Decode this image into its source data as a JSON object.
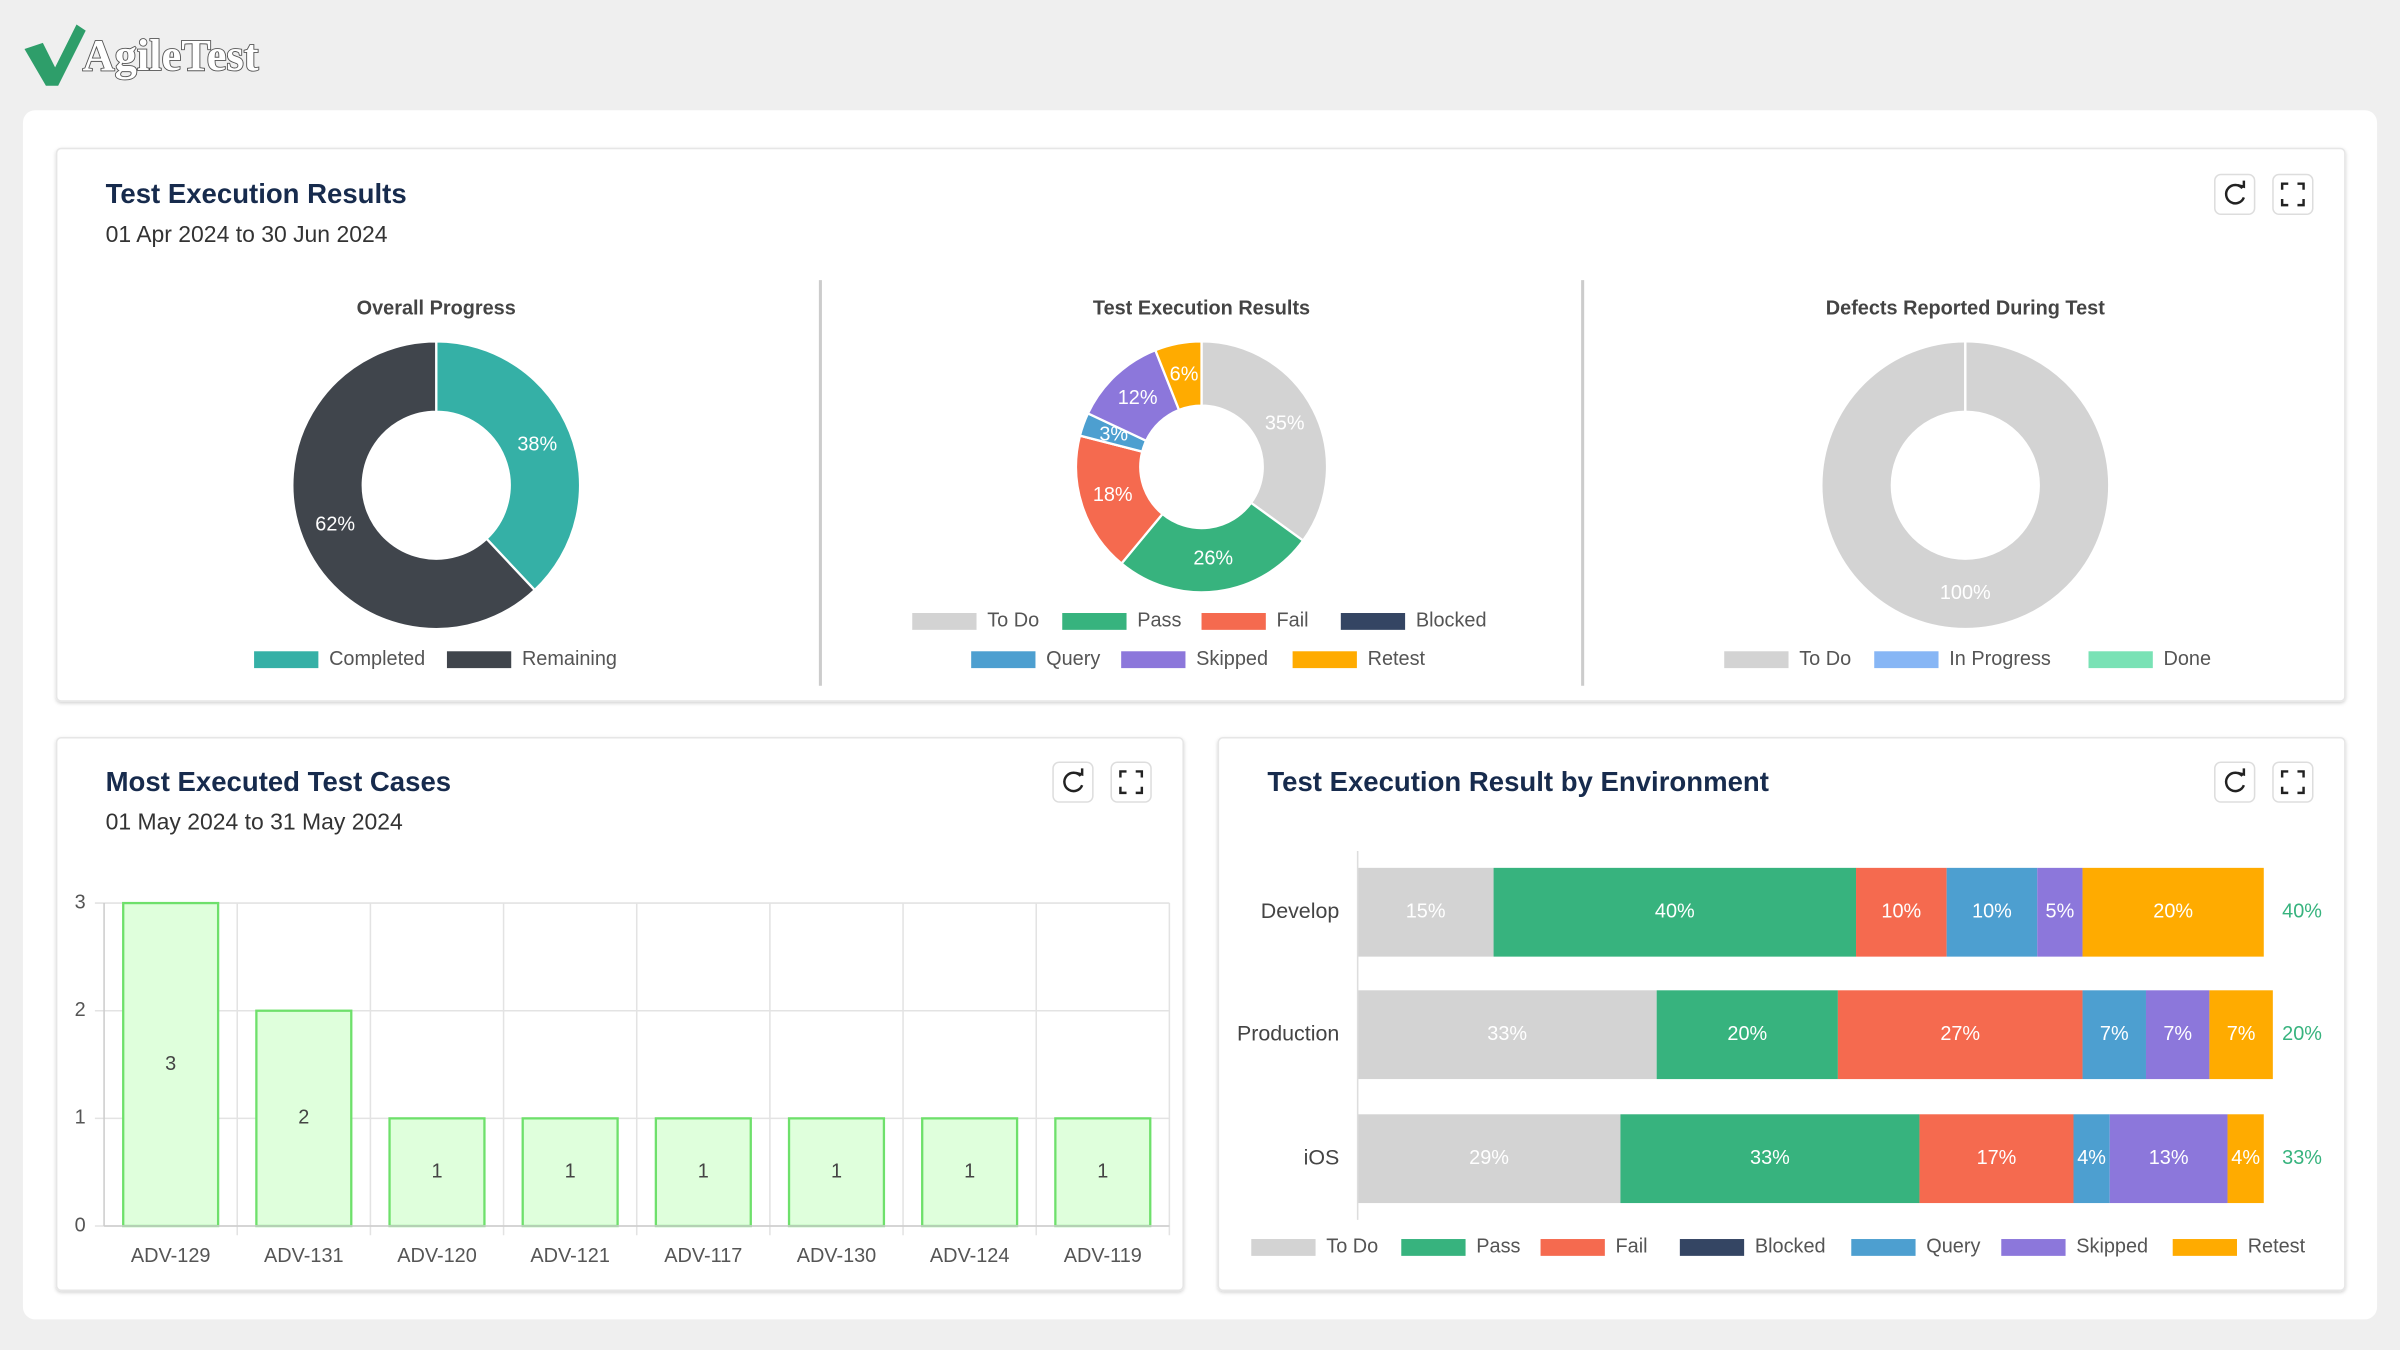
{
  "logo": "AgileTest",
  "panels": [
    {
      "title": "Test Execution Results",
      "subtitle": "01 Apr 2024 to 30 Jun 2024"
    },
    {
      "title": "Most Executed Test Cases",
      "subtitle": "01 May 2024 to 31 May 2024"
    },
    {
      "title": "Test Execution Result by Environment"
    }
  ],
  "chart_data": [
    {
      "type": "donut",
      "title": "Overall Progress",
      "categories": [
        "Completed",
        "Remaining"
      ],
      "values": [
        38,
        62
      ],
      "value_labels": [
        "38%",
        "62%"
      ],
      "colors": [
        "#35b0a6",
        "#40454c"
      ]
    },
    {
      "type": "donut",
      "title": "Test Execution Results",
      "categories": [
        "To Do",
        "Pass",
        "Fail",
        "Blocked",
        "Query",
        "Skipped",
        "Retest"
      ],
      "values": [
        35,
        26,
        18,
        0,
        3,
        12,
        6
      ],
      "value_labels": [
        "35%",
        "26%",
        "18%",
        null,
        "3%",
        "12%",
        "6%"
      ],
      "colors": [
        "#d3d3d3",
        "#37b37e",
        "#f56a4f",
        "#344563",
        "#4d9fd0",
        "#8c77db",
        "#ffab00"
      ]
    },
    {
      "type": "donut",
      "title": "Defects Reported During Test",
      "categories": [
        "To Do",
        "In Progress",
        "Done"
      ],
      "values": [
        100,
        0,
        0
      ],
      "value_labels": [
        "100%",
        null,
        null
      ],
      "colors": [
        "#d3d3d3",
        "#87b6f5",
        "#79e2b5"
      ]
    },
    {
      "type": "bar",
      "categories": [
        "ADV-129",
        "ADV-131",
        "ADV-120",
        "ADV-121",
        "ADV-117",
        "ADV-130",
        "ADV-124",
        "ADV-119"
      ],
      "values": [
        3,
        2,
        1,
        1,
        1,
        1,
        1,
        1
      ],
      "color": "#dfffdc",
      "stroke": "#6ee06b",
      "ylim": [
        0,
        3
      ],
      "yticks": [
        0,
        1,
        2,
        3
      ],
      "grid": true
    },
    {
      "type": "stacked_barh",
      "categories": [
        "Develop",
        "Production",
        "iOS"
      ],
      "xlim": [
        0,
        100
      ],
      "series": [
        {
          "name": "To Do",
          "color": "#d3d3d3",
          "values": [
            15,
            33,
            29
          ],
          "value_labels": [
            "15%",
            "33%",
            "29%"
          ]
        },
        {
          "name": "Pass",
          "color": "#37b37e",
          "values": [
            40,
            20,
            33
          ],
          "value_labels": [
            "40%",
            "20%",
            "33%"
          ]
        },
        {
          "name": "Fail",
          "color": "#f56a4f",
          "values": [
            10,
            27,
            17
          ],
          "value_labels": [
            "10%",
            "27%",
            "17%"
          ]
        },
        {
          "name": "Blocked",
          "color": "#344563",
          "values": [
            0,
            0,
            0
          ],
          "value_labels": [
            null,
            null,
            null
          ]
        },
        {
          "name": "Query",
          "color": "#4d9fd0",
          "values": [
            10,
            7,
            4
          ],
          "value_labels": [
            "10%",
            "7%",
            "4%"
          ]
        },
        {
          "name": "Skipped",
          "color": "#8c77db",
          "values": [
            5,
            7,
            13
          ],
          "value_labels": [
            "5%",
            "7%",
            "13%"
          ]
        },
        {
          "name": "Retest",
          "color": "#ffab00",
          "values": [
            20,
            7,
            4
          ],
          "value_labels": [
            "20%",
            "7%",
            "4%"
          ]
        }
      ],
      "pass_rate": [
        40,
        20,
        33
      ],
      "pass_rate_labels": [
        "40%",
        "20%",
        "33%"
      ],
      "pass_rate_color": "#37b37e"
    }
  ]
}
